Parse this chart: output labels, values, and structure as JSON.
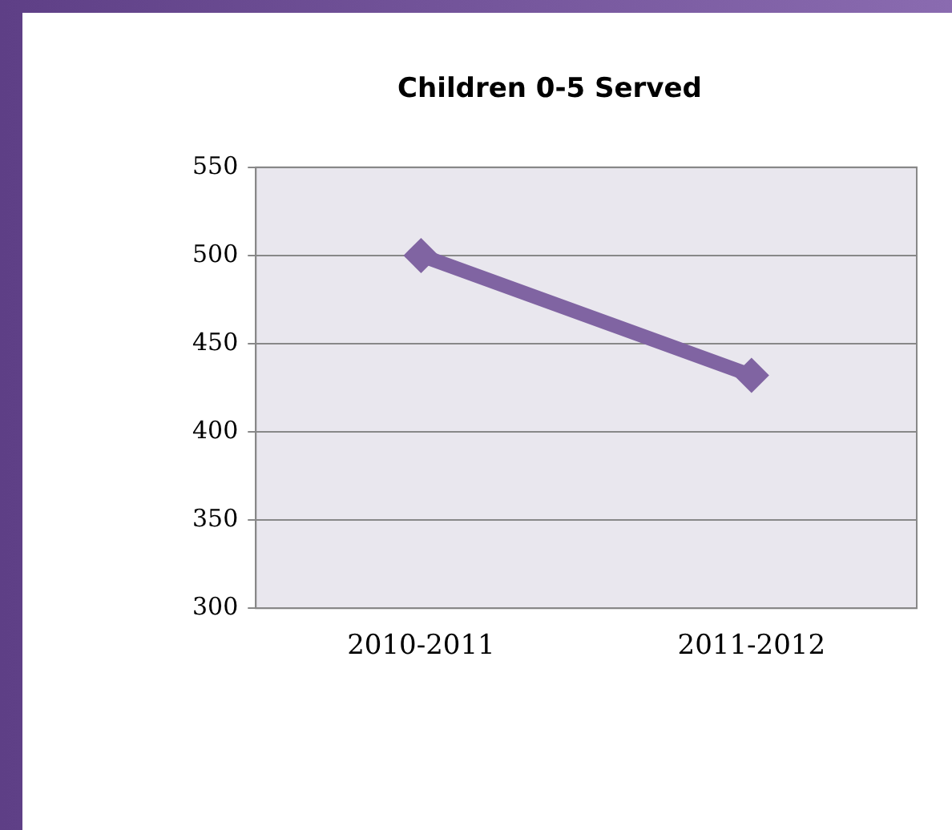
{
  "chart_data": {
    "type": "line",
    "title": "Children 0-5 Served",
    "categories": [
      "2010-2011",
      "2011-2012"
    ],
    "series": [
      {
        "color": "#8064a2",
        "values": [
          500,
          432
        ]
      }
    ],
    "ylim": [
      300,
      550
    ],
    "yticks": [
      300,
      350,
      400,
      450,
      500,
      550
    ],
    "grid": "y",
    "marker": "diamond",
    "legend": false
  }
}
